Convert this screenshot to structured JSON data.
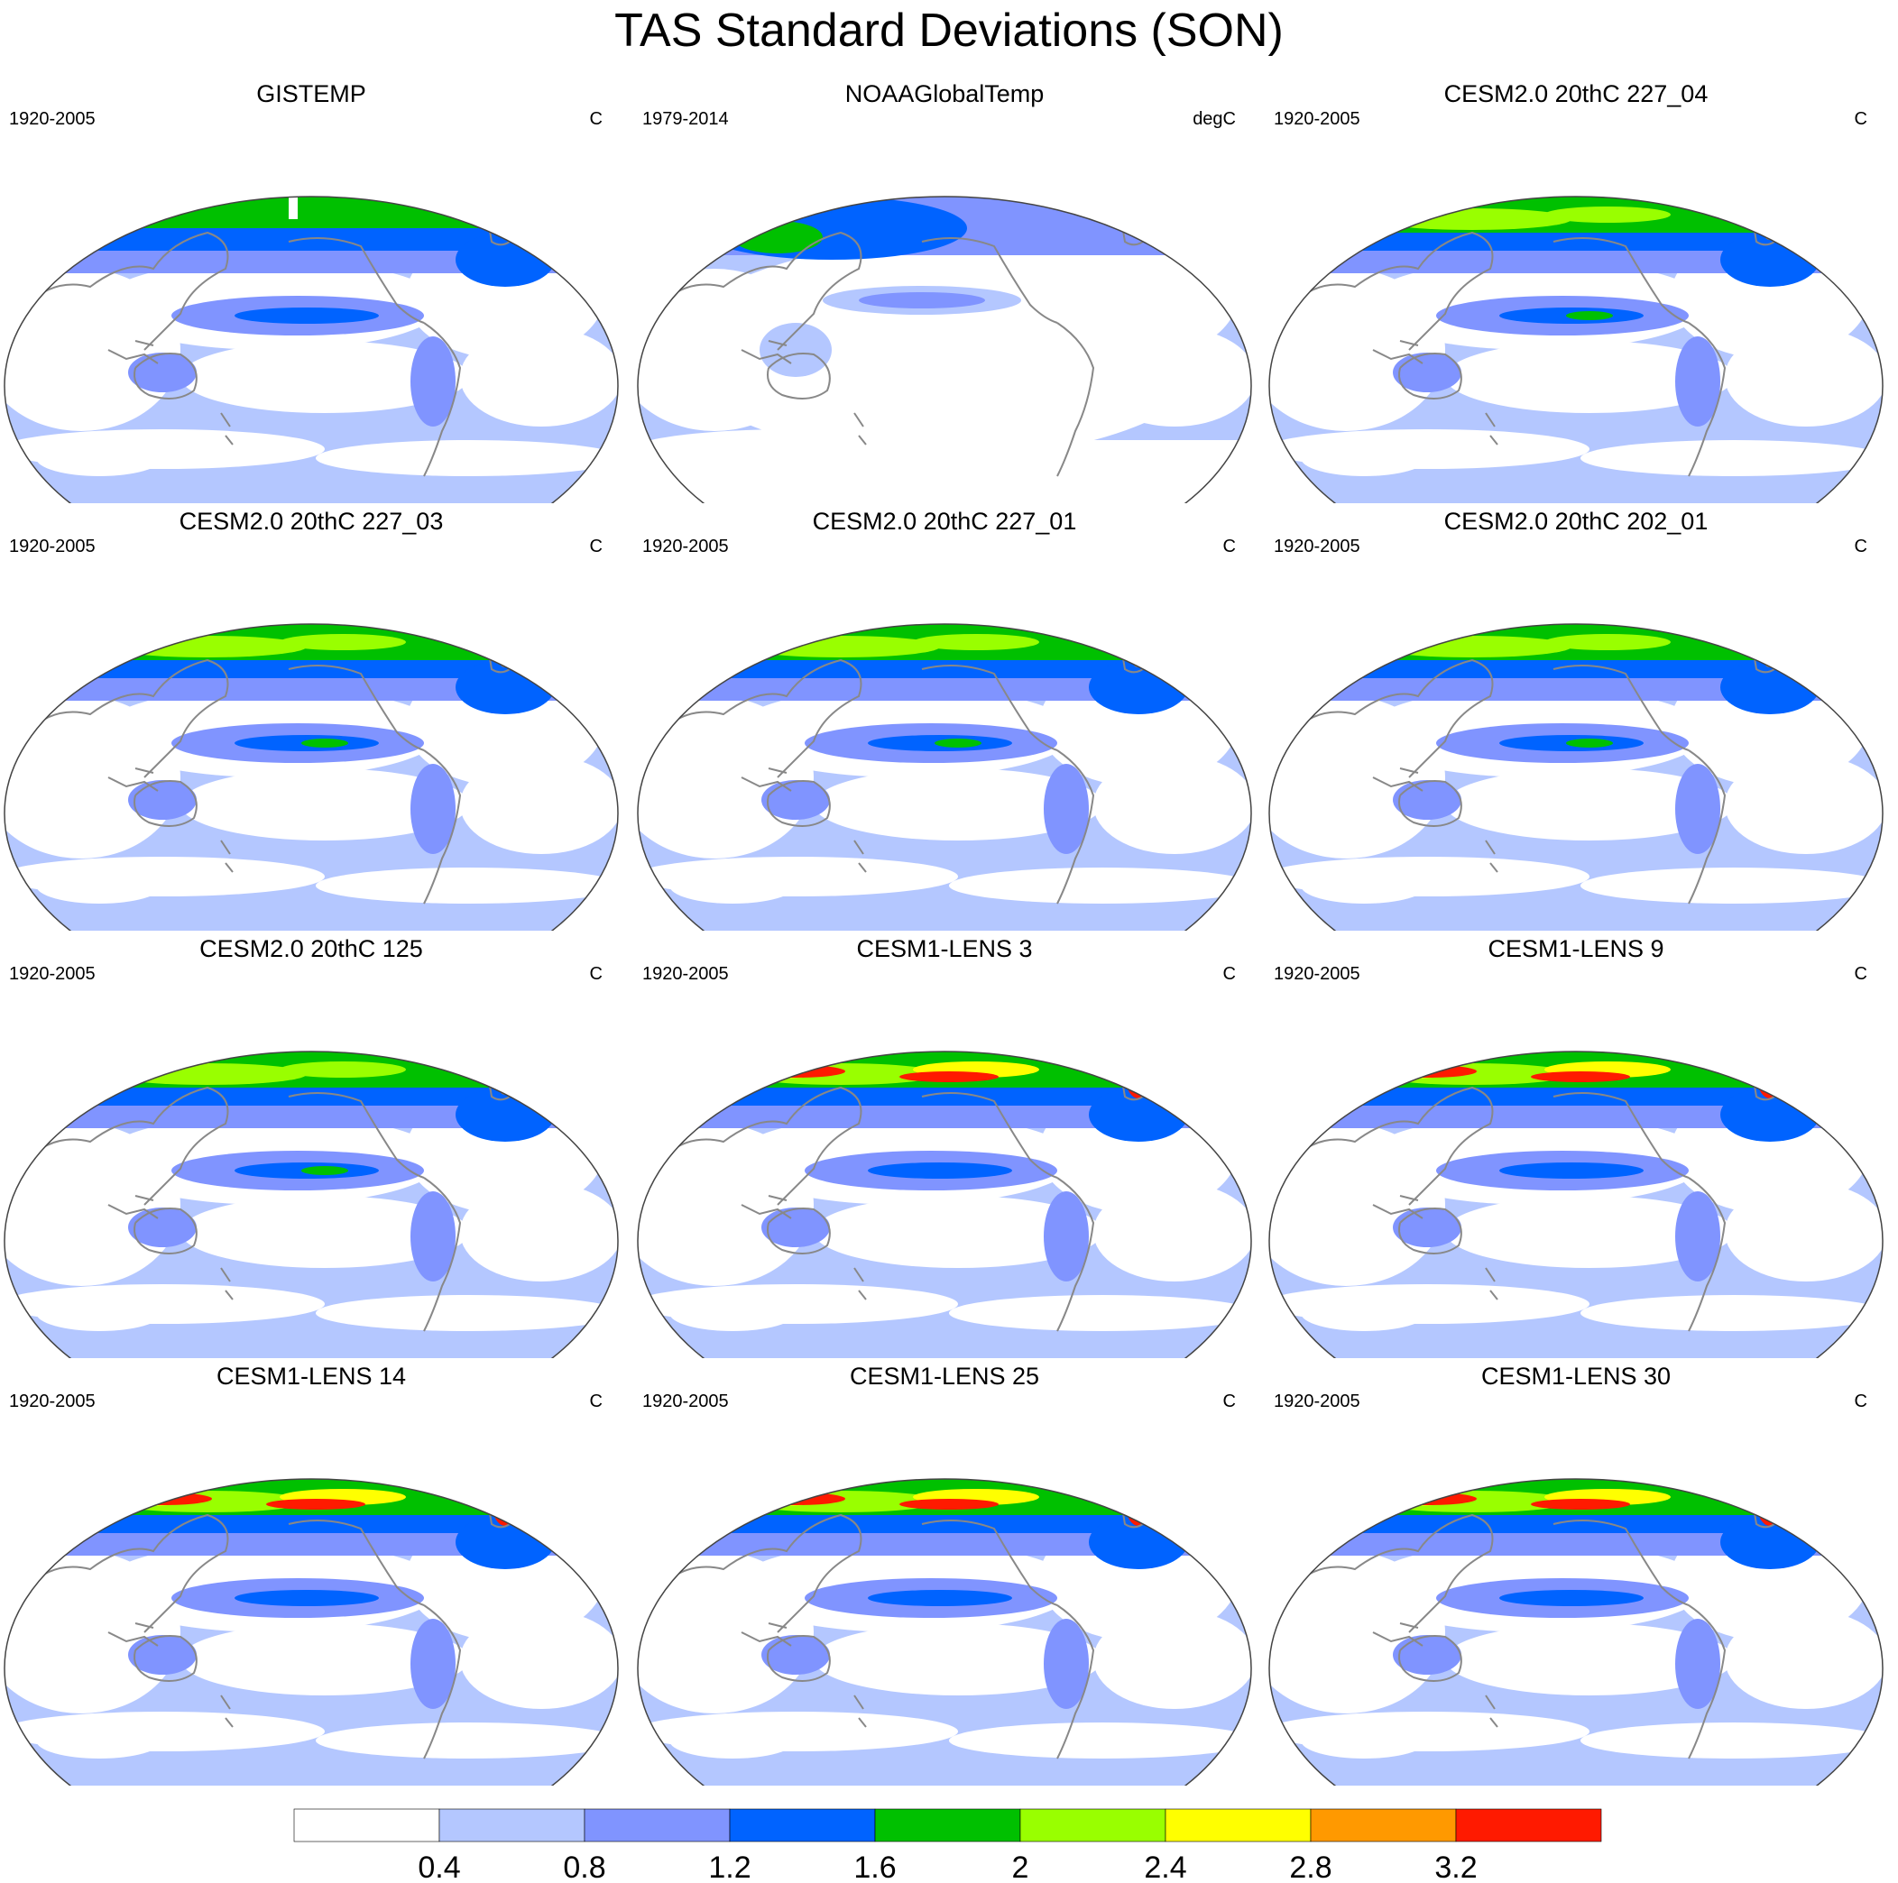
{
  "title": "TAS Standard Deviations (SON)",
  "colors": {
    "levels": [
      "#ffffff",
      "#b4c7ff",
      "#8094ff",
      "#0063ff",
      "#00c000",
      "#99ff00",
      "#ffff00",
      "#ff9900",
      "#ff1a00"
    ],
    "coastline": "#888888",
    "border": "#444444"
  },
  "colorbar": {
    "labels": [
      "0.4",
      "0.8",
      "1.2",
      "1.6",
      "2",
      "2.4",
      "2.8",
      "3.2"
    ]
  },
  "panels": [
    {
      "title": "GISTEMP",
      "period": "1920-2005",
      "units": "C",
      "kind": "obs-gis"
    },
    {
      "title": "NOAAGlobalTemp",
      "period": "1979-2014",
      "units": "degC",
      "kind": "obs-noaa"
    },
    {
      "title": "CESM2.0 20thC 227_04",
      "period": "1920-2005",
      "units": "C",
      "kind": "cesm2"
    },
    {
      "title": "CESM2.0 20thC 227_03",
      "period": "1920-2005",
      "units": "C",
      "kind": "cesm2"
    },
    {
      "title": "CESM2.0 20thC 227_01",
      "period": "1920-2005",
      "units": "C",
      "kind": "cesm2"
    },
    {
      "title": "CESM2.0 20thC 202_01",
      "period": "1920-2005",
      "units": "C",
      "kind": "cesm2"
    },
    {
      "title": "CESM2.0 20thC 125",
      "period": "1920-2005",
      "units": "C",
      "kind": "cesm2"
    },
    {
      "title": "CESM1-LENS 3",
      "period": "1920-2005",
      "units": "C",
      "kind": "lens"
    },
    {
      "title": "CESM1-LENS 9",
      "period": "1920-2005",
      "units": "C",
      "kind": "lens"
    },
    {
      "title": "CESM1-LENS 14",
      "period": "1920-2005",
      "units": "C",
      "kind": "lens"
    },
    {
      "title": "CESM1-LENS 25",
      "period": "1920-2005",
      "units": "C",
      "kind": "lens"
    },
    {
      "title": "CESM1-LENS 30",
      "period": "1920-2005",
      "units": "C",
      "kind": "lens"
    }
  ]
}
